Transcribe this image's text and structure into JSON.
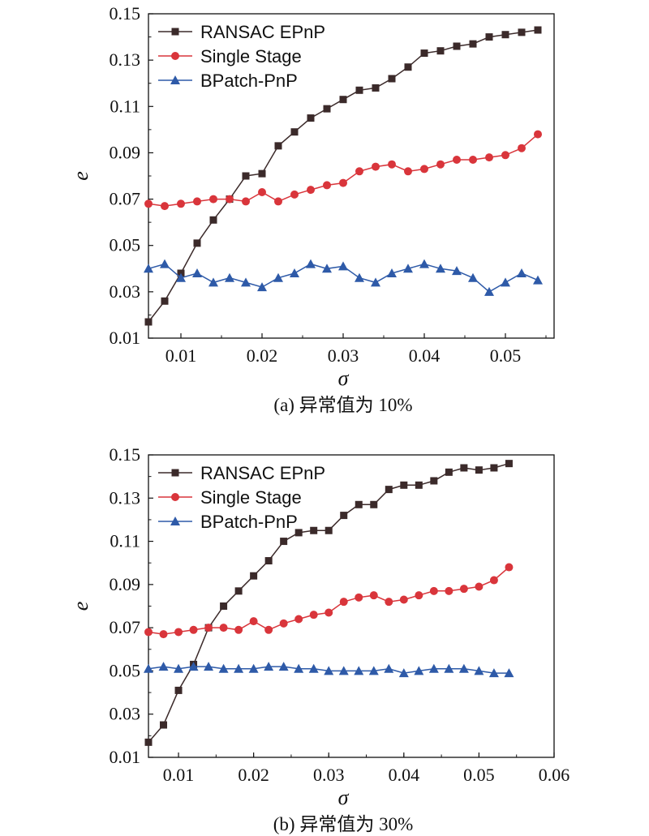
{
  "chart_data": [
    {
      "type": "line",
      "caption": "(a) 异常值为 10%",
      "xlabel": "σ",
      "ylabel": "e",
      "xlim": [
        0.006,
        0.056
      ],
      "ylim": [
        0.01,
        0.15
      ],
      "xticks": [
        "0.01",
        "0.02",
        "0.03",
        "0.04",
        "0.05"
      ],
      "xtick_values": [
        0.01,
        0.02,
        0.03,
        0.04,
        0.05
      ],
      "yticks": [
        "0.01",
        "0.03",
        "0.05",
        "0.07",
        "0.09",
        "0.11",
        "0.13",
        "0.15"
      ],
      "ytick_values": [
        0.01,
        0.03,
        0.05,
        0.07,
        0.09,
        0.11,
        0.13,
        0.15
      ],
      "legend_position": "top-left",
      "grid": false,
      "x": [
        0.006,
        0.008,
        0.01,
        0.012,
        0.014,
        0.016,
        0.018,
        0.02,
        0.022,
        0.024,
        0.026,
        0.028,
        0.03,
        0.032,
        0.034,
        0.036,
        0.038,
        0.04,
        0.042,
        0.044,
        0.046,
        0.048,
        0.05,
        0.052,
        0.054
      ],
      "series": [
        {
          "name": "RANSAC EPnP",
          "color": "#3b2a2a",
          "marker": "square",
          "values": [
            0.017,
            0.026,
            0.038,
            0.051,
            0.061,
            0.07,
            0.08,
            0.081,
            0.093,
            0.099,
            0.105,
            0.109,
            0.113,
            0.117,
            0.118,
            0.122,
            0.127,
            0.133,
            0.134,
            0.136,
            0.137,
            0.14,
            0.141,
            0.142,
            0.143
          ]
        },
        {
          "name": "Single Stage",
          "color": "#d9353b",
          "marker": "circle",
          "values": [
            0.068,
            0.067,
            0.068,
            0.069,
            0.07,
            0.07,
            0.069,
            0.073,
            0.069,
            0.072,
            0.074,
            0.076,
            0.077,
            0.082,
            0.084,
            0.085,
            0.082,
            0.083,
            0.085,
            0.087,
            0.087,
            0.088,
            0.089,
            0.092,
            0.098
          ]
        },
        {
          "name": "BPatch-PnP",
          "color": "#2e5aa8",
          "marker": "triangle",
          "values": [
            0.04,
            0.042,
            0.036,
            0.038,
            0.034,
            0.036,
            0.034,
            0.032,
            0.036,
            0.038,
            0.042,
            0.04,
            0.041,
            0.036,
            0.034,
            0.038,
            0.04,
            0.042,
            0.04,
            0.039,
            0.036,
            0.03,
            0.034,
            0.038,
            0.035
          ]
        }
      ]
    },
    {
      "type": "line",
      "caption": "(b) 异常值为 30%",
      "xlabel": "σ",
      "ylabel": "e",
      "xlim": [
        0.006,
        0.06
      ],
      "ylim": [
        0.01,
        0.15
      ],
      "xticks": [
        "0.01",
        "0.02",
        "0.03",
        "0.04",
        "0.05",
        "0.06"
      ],
      "xtick_values": [
        0.01,
        0.02,
        0.03,
        0.04,
        0.05,
        0.06
      ],
      "yticks": [
        "0.01",
        "0.03",
        "0.05",
        "0.07",
        "0.09",
        "0.11",
        "0.13",
        "0.15"
      ],
      "ytick_values": [
        0.01,
        0.03,
        0.05,
        0.07,
        0.09,
        0.11,
        0.13,
        0.15
      ],
      "legend_position": "top-left",
      "grid": false,
      "x": [
        0.006,
        0.008,
        0.01,
        0.012,
        0.014,
        0.016,
        0.018,
        0.02,
        0.022,
        0.024,
        0.026,
        0.028,
        0.03,
        0.032,
        0.034,
        0.036,
        0.038,
        0.04,
        0.042,
        0.044,
        0.046,
        0.048,
        0.05,
        0.052,
        0.054
      ],
      "series": [
        {
          "name": "RANSAC EPnP",
          "color": "#3b2a2a",
          "marker": "square",
          "values": [
            0.017,
            0.025,
            0.041,
            0.053,
            0.07,
            0.08,
            0.087,
            0.094,
            0.101,
            0.11,
            0.114,
            0.115,
            0.115,
            0.122,
            0.127,
            0.127,
            0.134,
            0.136,
            0.136,
            0.138,
            0.142,
            0.144,
            0.143,
            0.144,
            0.146
          ]
        },
        {
          "name": "Single Stage",
          "color": "#d9353b",
          "marker": "circle",
          "values": [
            0.068,
            0.067,
            0.068,
            0.069,
            0.07,
            0.07,
            0.069,
            0.073,
            0.069,
            0.072,
            0.074,
            0.076,
            0.077,
            0.082,
            0.084,
            0.085,
            0.082,
            0.083,
            0.085,
            0.087,
            0.087,
            0.088,
            0.089,
            0.092,
            0.098
          ]
        },
        {
          "name": "BPatch-PnP",
          "color": "#2e5aa8",
          "marker": "triangle",
          "values": [
            0.051,
            0.052,
            0.051,
            0.052,
            0.052,
            0.051,
            0.051,
            0.051,
            0.052,
            0.052,
            0.051,
            0.051,
            0.05,
            0.05,
            0.05,
            0.05,
            0.051,
            0.049,
            0.05,
            0.051,
            0.051,
            0.051,
            0.05,
            0.049,
            0.049
          ]
        }
      ]
    }
  ]
}
